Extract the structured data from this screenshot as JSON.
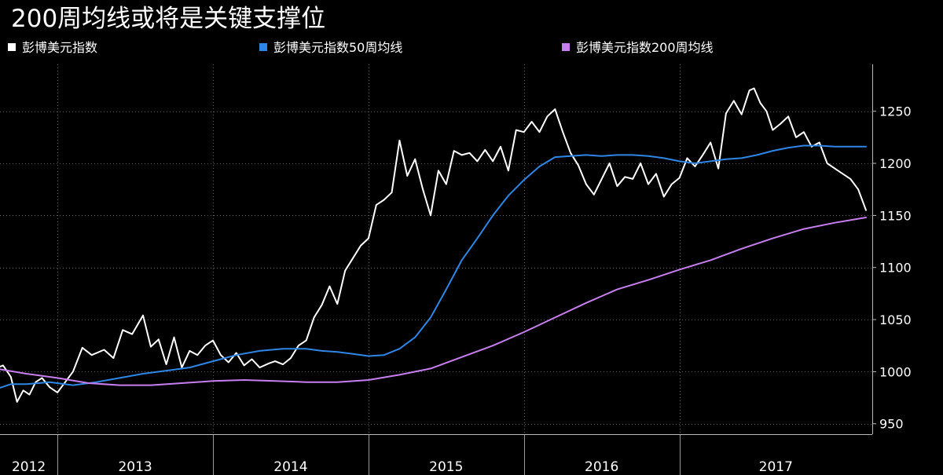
{
  "title": "200周均线或将是关键支撑位",
  "legend": [
    {
      "label": "彭博美元指数",
      "color": "#ffffff"
    },
    {
      "label": "彭博美元指数50周均线",
      "color": "#2e86e6"
    },
    {
      "label": "彭博美元指数200周均线",
      "color": "#c77ff0"
    }
  ],
  "chart_data": {
    "type": "line",
    "ylim": [
      940,
      1295
    ],
    "y_ticks": [
      950,
      1000,
      1050,
      1100,
      1150,
      1200,
      1250
    ],
    "xlim": [
      2012.0,
      2017.61
    ],
    "x_tick_labels": [
      "2012",
      "2013",
      "2014",
      "2015",
      "2016",
      "2017"
    ],
    "grid": true,
    "legend_position": "top",
    "series": [
      {
        "name": "彭博美元指数",
        "color": "#ffffff",
        "x": [
          2012.0,
          2012.05,
          2012.1,
          2012.14,
          2012.18,
          2012.22,
          2012.26,
          2012.3,
          2012.35,
          2012.4,
          2012.45,
          2012.5,
          2012.56,
          2012.62,
          2012.7,
          2012.76,
          2012.82,
          2012.88,
          2012.95,
          2013.0,
          2013.05,
          2013.1,
          2013.15,
          2013.2,
          2013.25,
          2013.3,
          2013.35,
          2013.4,
          2013.45,
          2013.5,
          2013.55,
          2013.6,
          2013.65,
          2013.7,
          2013.76,
          2013.8,
          2013.85,
          2013.9,
          2013.95,
          2014.0,
          2014.05,
          2014.1,
          2014.15,
          2014.2,
          2014.25,
          2014.3,
          2014.35,
          2014.4,
          2014.45,
          2014.5,
          2014.55,
          2014.6,
          2014.65,
          2014.7,
          2014.75,
          2014.8,
          2014.85,
          2014.9,
          2014.95,
          2015.0,
          2015.05,
          2015.1,
          2015.15,
          2015.2,
          2015.25,
          2015.3,
          2015.35,
          2015.4,
          2015.45,
          2015.5,
          2015.55,
          2015.6,
          2015.65,
          2015.7,
          2015.75,
          2015.8,
          2015.85,
          2015.9,
          2015.95,
          2016.0,
          2016.05,
          2016.1,
          2016.15,
          2016.2,
          2016.25,
          2016.3,
          2016.35,
          2016.4,
          2016.45,
          2016.5,
          2016.55,
          2016.6,
          2016.65,
          2016.7,
          2016.75,
          2016.8,
          2016.85,
          2016.88,
          2016.92,
          2016.96,
          2017.0,
          2017.05,
          2017.1,
          2017.15,
          2017.2,
          2017.25,
          2017.3,
          2017.35,
          2017.4,
          2017.45,
          2017.5,
          2017.55,
          2017.6
        ],
        "values": [
          1003,
          1006,
          995,
          971,
          982,
          978,
          990,
          994,
          985,
          980,
          990,
          1000,
          1023,
          1016,
          1021,
          1013,
          1040,
          1036,
          1054,
          1024,
          1031,
          1007,
          1033,
          1004,
          1020,
          1016,
          1025,
          1030,
          1016,
          1009,
          1018,
          1006,
          1012,
          1004,
          1008,
          1010,
          1007,
          1013,
          1025,
          1030,
          1052,
          1064,
          1082,
          1065,
          1097,
          1109,
          1121,
          1128,
          1160,
          1165,
          1172,
          1222,
          1188,
          1204,
          1175,
          1150,
          1193,
          1180,
          1212,
          1208,
          1210,
          1202,
          1213,
          1202,
          1216,
          1193,
          1232,
          1230,
          1240,
          1230,
          1245,
          1252,
          1230,
          1210,
          1198,
          1180,
          1170,
          1185,
          1200,
          1178,
          1187,
          1185,
          1200,
          1180,
          1190,
          1168,
          1180,
          1186,
          1205,
          1197,
          1208,
          1220,
          1195,
          1248,
          1260,
          1247,
          1270,
          1272,
          1258,
          1250,
          1232,
          1238,
          1245,
          1225,
          1230,
          1216,
          1220,
          1200,
          1195,
          1190,
          1185,
          1175,
          1155
        ]
      },
      {
        "name": "彭博美元指数50周均线",
        "color": "#2e86e6",
        "x": [
          2012.0,
          2012.1,
          2012.2,
          2012.35,
          2012.5,
          2012.65,
          2012.8,
          2012.95,
          2013.1,
          2013.25,
          2013.4,
          2013.55,
          2013.7,
          2013.85,
          2014.0,
          2014.1,
          2014.2,
          2014.3,
          2014.4,
          2014.5,
          2014.6,
          2014.7,
          2014.8,
          2014.9,
          2015.0,
          2015.1,
          2015.2,
          2015.3,
          2015.4,
          2015.5,
          2015.6,
          2015.7,
          2015.8,
          2015.9,
          2016.0,
          2016.1,
          2016.2,
          2016.3,
          2016.4,
          2016.5,
          2016.6,
          2016.7,
          2016.8,
          2016.9,
          2017.0,
          2017.1,
          2017.2,
          2017.3,
          2017.4,
          2017.5,
          2017.6
        ],
        "values": [
          983,
          988,
          988,
          990,
          987,
          990,
          994,
          998,
          1001,
          1004,
          1010,
          1016,
          1020,
          1022,
          1022,
          1020,
          1019,
          1017,
          1015,
          1016,
          1022,
          1033,
          1052,
          1079,
          1107,
          1128,
          1150,
          1169,
          1184,
          1197,
          1206,
          1207,
          1208,
          1207,
          1208,
          1208,
          1207,
          1205,
          1202,
          1200,
          1202,
          1204,
          1205,
          1208,
          1212,
          1215,
          1217,
          1217,
          1216,
          1216,
          1216
        ]
      },
      {
        "name": "彭博美元指数200周均线",
        "color": "#c77ff0",
        "x": [
          2012.0,
          2012.2,
          2012.4,
          2012.6,
          2012.8,
          2013.0,
          2013.2,
          2013.4,
          2013.6,
          2013.8,
          2014.0,
          2014.2,
          2014.4,
          2014.6,
          2014.8,
          2015.0,
          2015.2,
          2015.4,
          2015.6,
          2015.8,
          2016.0,
          2016.2,
          2016.4,
          2016.6,
          2016.8,
          2017.0,
          2017.2,
          2017.4,
          2017.6
        ],
        "values": [
          1003,
          998,
          994,
          989,
          987,
          987,
          989,
          991,
          992,
          991,
          990,
          990,
          992,
          997,
          1003,
          1014,
          1025,
          1038,
          1052,
          1066,
          1079,
          1088,
          1098,
          1107,
          1118,
          1128,
          1137,
          1143,
          1148
        ]
      }
    ]
  }
}
